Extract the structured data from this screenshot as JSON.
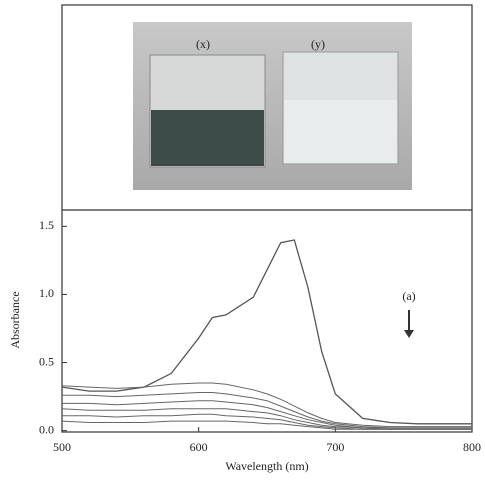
{
  "photo_labels": [
    "(x)",
    "(y)"
  ],
  "chart_data": {
    "type": "line",
    "xlabel": "Wavelength (nm)",
    "ylabel": "Absorbance",
    "annotation": "(a)",
    "xlim": [
      500,
      800
    ],
    "xticks": [
      500,
      600,
      700,
      800
    ],
    "ylim": [
      -0.01,
      1.62
    ],
    "yticks": [
      {
        "value": 0,
        "label": "0.0"
      },
      0.5,
      {
        "value": 1,
        "label": "1.0"
      },
      1.5
    ],
    "x": [
      500,
      520,
      540,
      560,
      580,
      600,
      610,
      620,
      640,
      650,
      660,
      670,
      680,
      690,
      700,
      720,
      740,
      760,
      780,
      800
    ],
    "series": [
      {
        "color": "#555555",
        "values": [
          0.32,
          0.29,
          0.29,
          0.32,
          0.42,
          0.68,
          0.83,
          0.85,
          0.98,
          1.18,
          1.38,
          1.4,
          1.05,
          0.58,
          0.27,
          0.09,
          0.06,
          0.05,
          0.05,
          0.05
        ]
      },
      {
        "color": "#666666",
        "values": [
          0.33,
          0.32,
          0.31,
          0.32,
          0.34,
          0.35,
          0.35,
          0.34,
          0.3,
          0.27,
          0.23,
          0.18,
          0.13,
          0.09,
          0.06,
          0.04,
          0.03,
          0.03,
          0.03,
          0.03
        ]
      },
      {
        "color": "#666666",
        "values": [
          0.26,
          0.26,
          0.25,
          0.26,
          0.27,
          0.28,
          0.28,
          0.27,
          0.24,
          0.22,
          0.18,
          0.14,
          0.1,
          0.07,
          0.05,
          0.03,
          0.02,
          0.02,
          0.02,
          0.02
        ]
      },
      {
        "color": "#666666",
        "values": [
          0.2,
          0.2,
          0.19,
          0.2,
          0.21,
          0.22,
          0.22,
          0.21,
          0.19,
          0.17,
          0.14,
          0.11,
          0.08,
          0.06,
          0.04,
          0.02,
          0.02,
          0.02,
          0.02,
          0.02
        ]
      },
      {
        "color": "#666666",
        "values": [
          0.16,
          0.15,
          0.15,
          0.15,
          0.16,
          0.16,
          0.16,
          0.16,
          0.14,
          0.13,
          0.11,
          0.08,
          0.06,
          0.04,
          0.03,
          0.02,
          0.01,
          0.01,
          0.01,
          0.01
        ]
      },
      {
        "color": "#666666",
        "values": [
          0.11,
          0.11,
          0.1,
          0.11,
          0.11,
          0.12,
          0.12,
          0.11,
          0.1,
          0.09,
          0.08,
          0.06,
          0.04,
          0.03,
          0.02,
          0.01,
          0.01,
          0.01,
          0.01,
          0.01
        ]
      },
      {
        "color": "#666666",
        "values": [
          0.07,
          0.06,
          0.06,
          0.06,
          0.07,
          0.07,
          0.07,
          0.07,
          0.06,
          0.05,
          0.05,
          0.04,
          0.03,
          0.02,
          0.01,
          0.01,
          0.01,
          0.01,
          0.01,
          0.01
        ]
      }
    ]
  }
}
